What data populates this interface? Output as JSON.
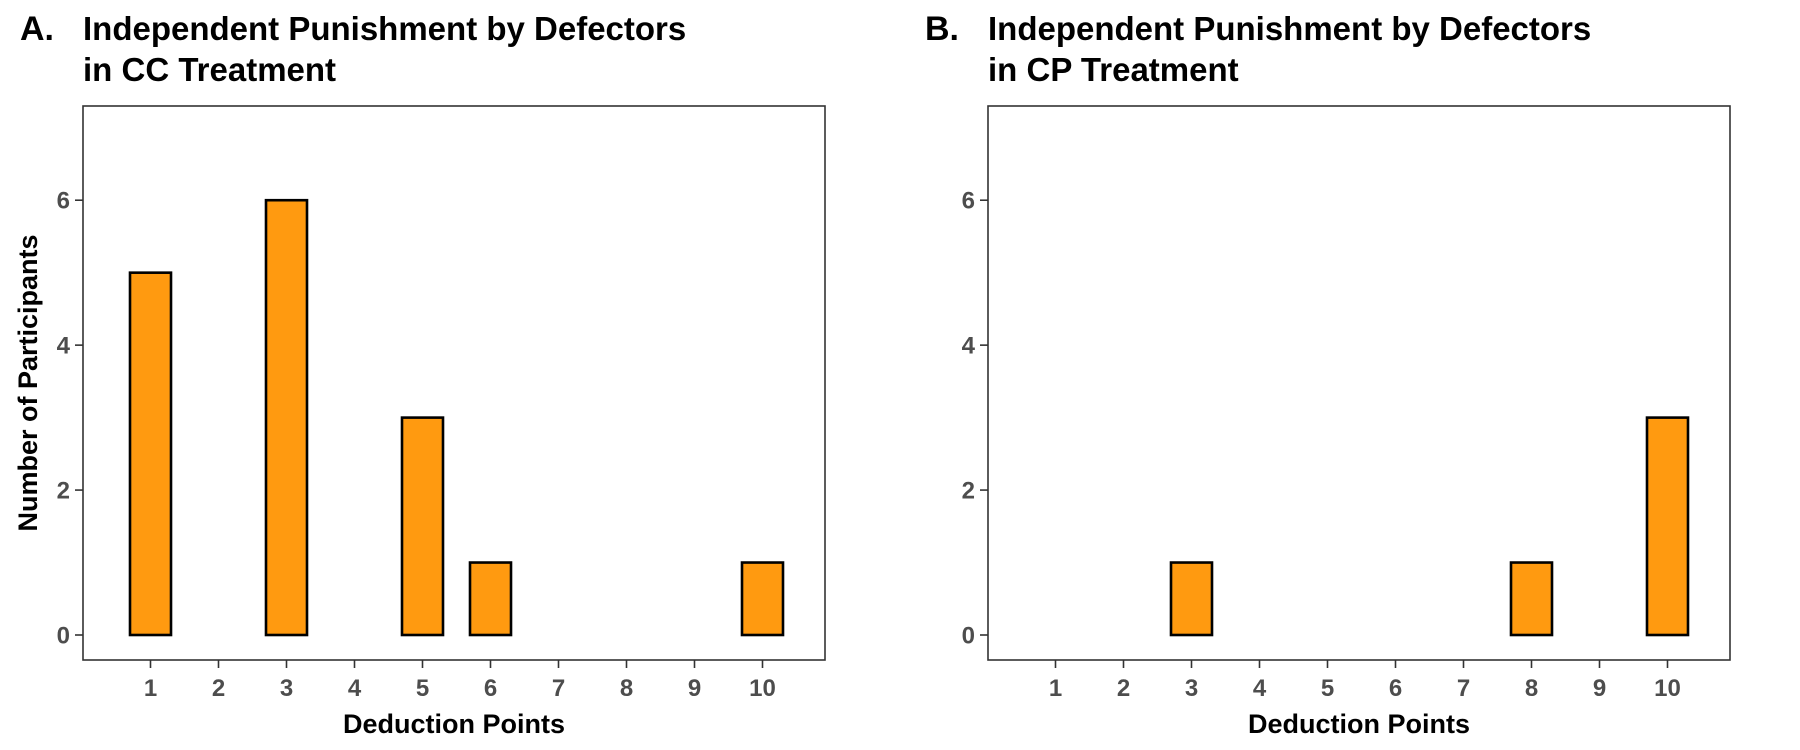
{
  "chart_data": [
    {
      "type": "bar",
      "panel": "A.",
      "title": [
        "Independent Punishment by Defectors",
        "in CC Treatment"
      ],
      "xlabel": "Deduction Points",
      "ylabel": "Number of Participants",
      "categories": [
        "1",
        "2",
        "3",
        "4",
        "5",
        "6",
        "7",
        "8",
        "9",
        "10"
      ],
      "values": [
        5,
        0,
        6,
        0,
        3,
        1,
        0,
        0,
        0,
        1
      ],
      "ylim": [
        0,
        7.3
      ],
      "yticks": [
        0,
        2,
        4,
        6
      ],
      "ytick_labels": [
        "0",
        "2",
        "4",
        "6"
      ],
      "grid": false,
      "bar_color": "#ff9a10"
    },
    {
      "type": "bar",
      "panel": "B.",
      "title": [
        "Independent Punishment by Defectors",
        "in CP Treatment"
      ],
      "xlabel": "Deduction Points",
      "ylabel": "",
      "categories": [
        "1",
        "2",
        "3",
        "4",
        "5",
        "6",
        "7",
        "8",
        "9",
        "10"
      ],
      "values": [
        0,
        0,
        1,
        0,
        0,
        0,
        0,
        1,
        0,
        3
      ],
      "ylim": [
        0,
        7.3
      ],
      "yticks": [
        0,
        2,
        4,
        6
      ],
      "ytick_labels": [
        "0",
        "2",
        "4",
        "6"
      ],
      "grid": false,
      "bar_color": "#ff9a10"
    }
  ]
}
